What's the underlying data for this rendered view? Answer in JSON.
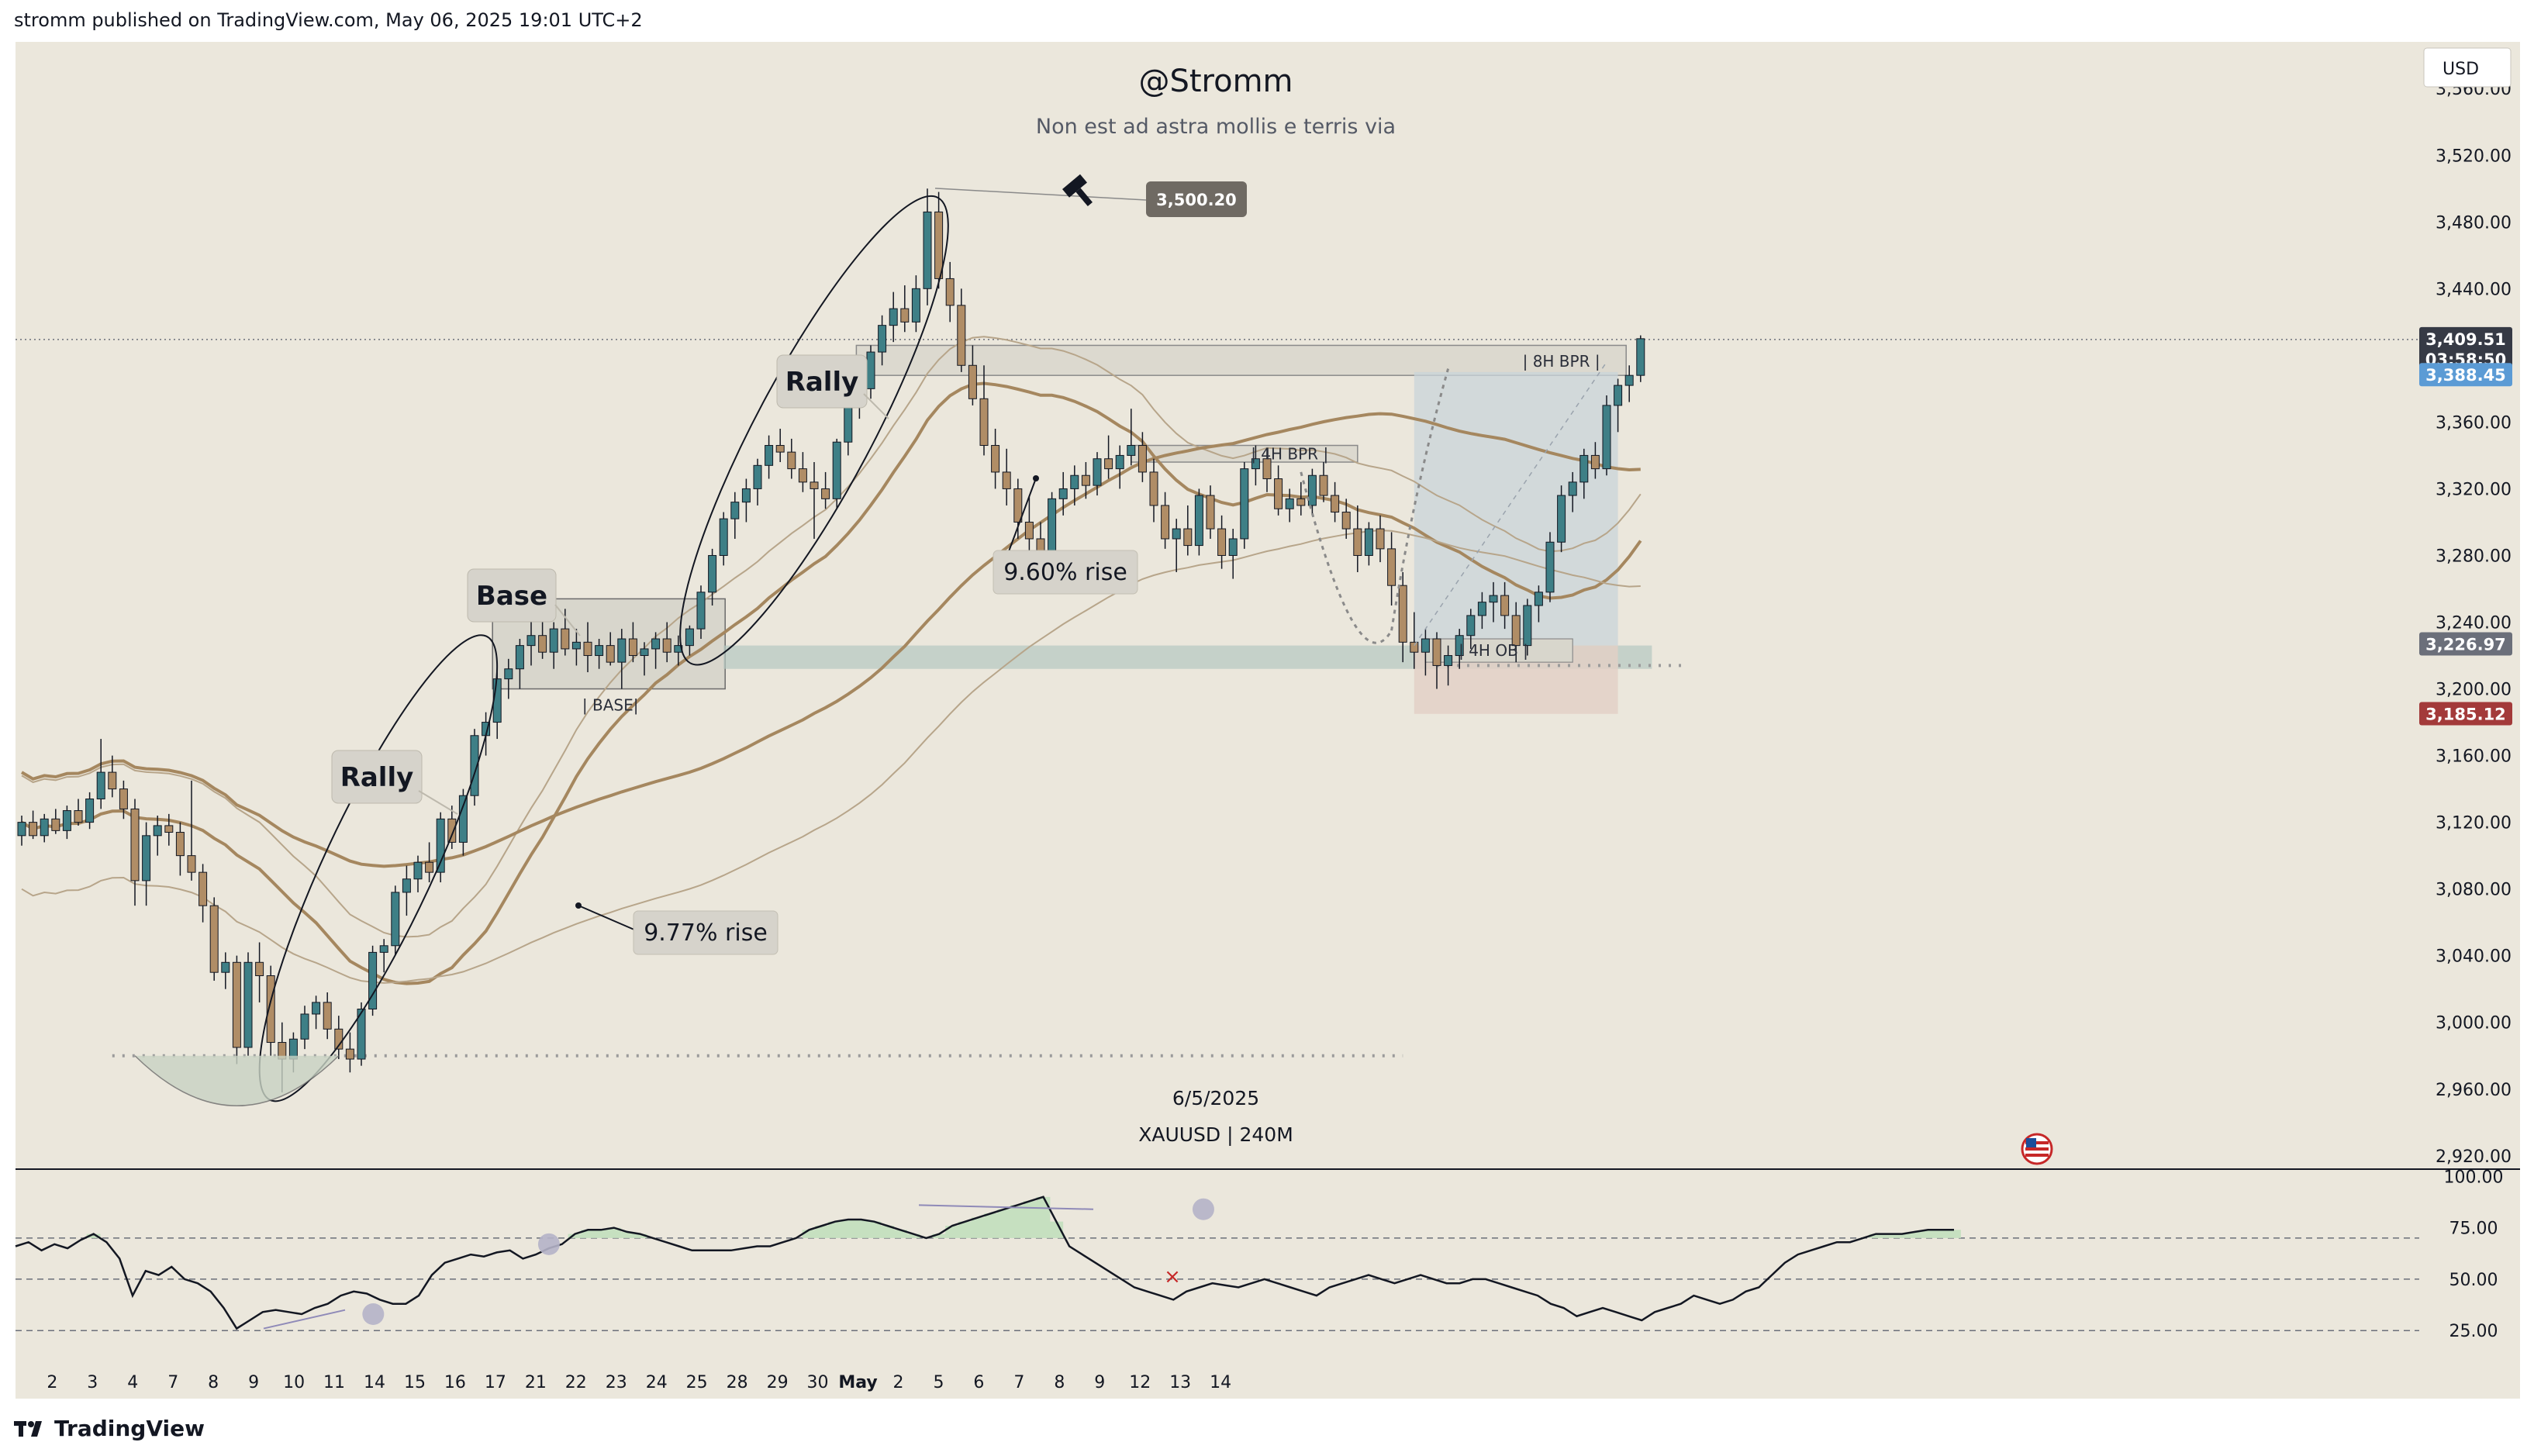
{
  "header": {
    "text": "stromm published on TradingView.com, May 06, 2025 19:01 UTC+2"
  },
  "footer": {
    "brand": "TradingView",
    "logo_icon": "tradingview-logo-icon"
  },
  "chart_data": {
    "type": "candlestick",
    "title": "@Stromm",
    "subtitle": "Non est ad astra mollis e terris via",
    "currency": "USD",
    "symbol_info": "XAUUSD | 240M",
    "date_label": "6/5/2025",
    "ylim": [
      2912,
      3588
    ],
    "y_ticks": [
      2920,
      2960,
      3000,
      3040,
      3080,
      3120,
      3160,
      3200,
      3240,
      3280,
      3320,
      3360,
      3400,
      3440,
      3480,
      3520,
      3560
    ],
    "y_tick_labels": [
      "2,920.00",
      "2,960.00",
      "3,000.00",
      "3,040.00",
      "3,080.00",
      "3,120.00",
      "3,160.00",
      "3,200.00",
      "3,240.00",
      "3,280.00",
      "3,320.00",
      "3,360.00",
      "3,400.00",
      "3,440.00",
      "3,480.00",
      "3,520.00",
      "3,560.00"
    ],
    "x_labels": [
      "2",
      "3",
      "4",
      "7",
      "8",
      "9",
      "10",
      "11",
      "14",
      "15",
      "16",
      "17",
      "21",
      "22",
      "23",
      "24",
      "25",
      "28",
      "29",
      "30",
      "May",
      "2",
      "5",
      "6",
      "7",
      "8",
      "9",
      "12",
      "13",
      "14"
    ],
    "x_label_bar_index": [
      2,
      8,
      14,
      20,
      26,
      32,
      38,
      44,
      50,
      56,
      62,
      68,
      74,
      80,
      86,
      92,
      98,
      104,
      110,
      116,
      122,
      128,
      134,
      140,
      146,
      152,
      158,
      164,
      170,
      176
    ],
    "price_tags": [
      {
        "value": 3409.51,
        "label": "3,409.51",
        "sub": "03:58:50",
        "color": "#363a45"
      },
      {
        "value": 3388.45,
        "label": "3,388.45",
        "color": "#5b9bd5"
      },
      {
        "value": 3226.97,
        "label": "3,226.97",
        "color": "#6b6f7a"
      },
      {
        "value": 3185.12,
        "label": "3,185.12",
        "color": "#a33a3a"
      }
    ],
    "high_marker": {
      "label": "3,500.20",
      "value": 3500.2,
      "icon": "hammer-icon"
    },
    "candles": [
      [
        3112,
        3124,
        3106,
        3120
      ],
      [
        3120,
        3127,
        3110,
        3112
      ],
      [
        3112,
        3125,
        3108,
        3122
      ],
      [
        3122,
        3128,
        3113,
        3115
      ],
      [
        3115,
        3130,
        3110,
        3127
      ],
      [
        3127,
        3134,
        3118,
        3120
      ],
      [
        3120,
        3138,
        3116,
        3134
      ],
      [
        3134,
        3170,
        3128,
        3150
      ],
      [
        3150,
        3160,
        3135,
        3140
      ],
      [
        3140,
        3145,
        3122,
        3128
      ],
      [
        3128,
        3134,
        3070,
        3085
      ],
      [
        3085,
        3120,
        3070,
        3112
      ],
      [
        3112,
        3124,
        3100,
        3118
      ],
      [
        3118,
        3125,
        3106,
        3114
      ],
      [
        3114,
        3120,
        3088,
        3100
      ],
      [
        3100,
        3145,
        3085,
        3090
      ],
      [
        3090,
        3095,
        3060,
        3070
      ],
      [
        3070,
        3075,
        3025,
        3030
      ],
      [
        3030,
        3042,
        3020,
        3036
      ],
      [
        3036,
        3040,
        2975,
        2985
      ],
      [
        2985,
        3042,
        2980,
        3036
      ],
      [
        3036,
        3048,
        3012,
        3028
      ],
      [
        3028,
        3034,
        2980,
        2988
      ],
      [
        2988,
        3000,
        2958,
        2978
      ],
      [
        2978,
        2994,
        2970,
        2990
      ],
      [
        2990,
        3010,
        2984,
        3005
      ],
      [
        3005,
        3016,
        2996,
        3012
      ],
      [
        3012,
        3018,
        2990,
        2996
      ],
      [
        2996,
        3004,
        2978,
        2984
      ],
      [
        2984,
        2994,
        2970,
        2978
      ],
      [
        2978,
        3012,
        2974,
        3008
      ],
      [
        3008,
        3046,
        3004,
        3042
      ],
      [
        3042,
        3050,
        3030,
        3046
      ],
      [
        3046,
        3082,
        3040,
        3078
      ],
      [
        3078,
        3094,
        3064,
        3086
      ],
      [
        3086,
        3100,
        3078,
        3096
      ],
      [
        3096,
        3108,
        3084,
        3090
      ],
      [
        3090,
        3126,
        3084,
        3122
      ],
      [
        3122,
        3130,
        3104,
        3108
      ],
      [
        3108,
        3140,
        3100,
        3136
      ],
      [
        3136,
        3176,
        3130,
        3172
      ],
      [
        3172,
        3186,
        3160,
        3180
      ],
      [
        3180,
        3210,
        3170,
        3206
      ],
      [
        3206,
        3218,
        3194,
        3212
      ],
      [
        3212,
        3230,
        3200,
        3226
      ],
      [
        3226,
        3246,
        3214,
        3232
      ],
      [
        3232,
        3242,
        3218,
        3222
      ],
      [
        3222,
        3240,
        3212,
        3236
      ],
      [
        3236,
        3248,
        3220,
        3224
      ],
      [
        3224,
        3236,
        3214,
        3228
      ],
      [
        3228,
        3240,
        3210,
        3220
      ],
      [
        3220,
        3230,
        3212,
        3226
      ],
      [
        3226,
        3234,
        3214,
        3216
      ],
      [
        3216,
        3236,
        3200,
        3230
      ],
      [
        3230,
        3240,
        3216,
        3220
      ],
      [
        3220,
        3228,
        3208,
        3224
      ],
      [
        3224,
        3234,
        3212,
        3230
      ],
      [
        3230,
        3240,
        3216,
        3222
      ],
      [
        3222,
        3232,
        3214,
        3226
      ],
      [
        3226,
        3238,
        3220,
        3236
      ],
      [
        3236,
        3262,
        3230,
        3258
      ],
      [
        3258,
        3284,
        3250,
        3280
      ],
      [
        3280,
        3306,
        3274,
        3302
      ],
      [
        3302,
        3318,
        3290,
        3312
      ],
      [
        3312,
        3326,
        3300,
        3320
      ],
      [
        3320,
        3338,
        3310,
        3334
      ],
      [
        3334,
        3352,
        3326,
        3346
      ],
      [
        3346,
        3356,
        3336,
        3342
      ],
      [
        3342,
        3350,
        3326,
        3332
      ],
      [
        3332,
        3342,
        3318,
        3324
      ],
      [
        3324,
        3336,
        3290,
        3320
      ],
      [
        3320,
        3330,
        3308,
        3314
      ],
      [
        3314,
        3350,
        3308,
        3348
      ],
      [
        3348,
        3378,
        3340,
        3374
      ],
      [
        3374,
        3386,
        3362,
        3380
      ],
      [
        3380,
        3406,
        3374,
        3402
      ],
      [
        3402,
        3424,
        3394,
        3418
      ],
      [
        3418,
        3438,
        3408,
        3428
      ],
      [
        3428,
        3442,
        3414,
        3420
      ],
      [
        3420,
        3448,
        3414,
        3440
      ],
      [
        3440,
        3500,
        3430,
        3486
      ],
      [
        3486,
        3498,
        3440,
        3446
      ],
      [
        3446,
        3456,
        3420,
        3430
      ],
      [
        3430,
        3440,
        3390,
        3394
      ],
      [
        3394,
        3406,
        3370,
        3374
      ],
      [
        3374,
        3394,
        3340,
        3346
      ],
      [
        3346,
        3356,
        3320,
        3330
      ],
      [
        3330,
        3344,
        3310,
        3320
      ],
      [
        3320,
        3326,
        3290,
        3300
      ],
      [
        3300,
        3316,
        3262,
        3290
      ],
      [
        3290,
        3300,
        3268,
        3282
      ],
      [
        3282,
        3318,
        3276,
        3314
      ],
      [
        3314,
        3330,
        3304,
        3320
      ],
      [
        3320,
        3334,
        3310,
        3328
      ],
      [
        3328,
        3336,
        3314,
        3322
      ],
      [
        3322,
        3342,
        3316,
        3338
      ],
      [
        3338,
        3352,
        3326,
        3332
      ],
      [
        3332,
        3346,
        3320,
        3340
      ],
      [
        3340,
        3368,
        3334,
        3346
      ],
      [
        3346,
        3354,
        3324,
        3330
      ],
      [
        3330,
        3338,
        3300,
        3310
      ],
      [
        3310,
        3318,
        3284,
        3290
      ],
      [
        3290,
        3302,
        3270,
        3296
      ],
      [
        3296,
        3310,
        3280,
        3286
      ],
      [
        3286,
        3320,
        3280,
        3316
      ],
      [
        3316,
        3322,
        3290,
        3296
      ],
      [
        3296,
        3304,
        3272,
        3280
      ],
      [
        3280,
        3296,
        3266,
        3290
      ],
      [
        3290,
        3336,
        3284,
        3332
      ],
      [
        3332,
        3346,
        3322,
        3338
      ],
      [
        3338,
        3344,
        3318,
        3326
      ],
      [
        3326,
        3334,
        3304,
        3308
      ],
      [
        3308,
        3320,
        3300,
        3314
      ],
      [
        3314,
        3324,
        3304,
        3310
      ],
      [
        3310,
        3332,
        3304,
        3328
      ],
      [
        3328,
        3336,
        3312,
        3316
      ],
      [
        3316,
        3324,
        3300,
        3306
      ],
      [
        3306,
        3314,
        3290,
        3296
      ],
      [
        3296,
        3310,
        3270,
        3280
      ],
      [
        3280,
        3300,
        3274,
        3296
      ],
      [
        3296,
        3304,
        3276,
        3284
      ],
      [
        3284,
        3294,
        3250,
        3262
      ],
      [
        3262,
        3270,
        3216,
        3228
      ],
      [
        3228,
        3246,
        3212,
        3222
      ],
      [
        3222,
        3236,
        3208,
        3230
      ],
      [
        3230,
        3234,
        3200,
        3214
      ],
      [
        3214,
        3226,
        3202,
        3220
      ],
      [
        3220,
        3236,
        3212,
        3232
      ],
      [
        3232,
        3248,
        3224,
        3244
      ],
      [
        3244,
        3258,
        3236,
        3252
      ],
      [
        3252,
        3264,
        3240,
        3256
      ],
      [
        3256,
        3264,
        3236,
        3244
      ],
      [
        3244,
        3252,
        3216,
        3226
      ],
      [
        3226,
        3254,
        3220,
        3250
      ],
      [
        3250,
        3262,
        3240,
        3258
      ],
      [
        3258,
        3294,
        3252,
        3288
      ],
      [
        3288,
        3322,
        3282,
        3316
      ],
      [
        3316,
        3330,
        3306,
        3324
      ],
      [
        3324,
        3344,
        3314,
        3340
      ],
      [
        3340,
        3348,
        3326,
        3332
      ],
      [
        3332,
        3376,
        3328,
        3370
      ],
      [
        3370,
        3386,
        3354,
        3382
      ],
      [
        3382,
        3394,
        3372,
        3388
      ],
      [
        3388,
        3412,
        3384,
        3410
      ]
    ],
    "rsi": {
      "levels": [
        25,
        50,
        70
      ],
      "y_ticks": [
        25,
        50,
        75,
        100
      ],
      "y_tick_labels": [
        "25.00",
        "50.00",
        "75.00",
        "100.00"
      ],
      "values": [
        66,
        68,
        64,
        67,
        65,
        69,
        72,
        68,
        60,
        42,
        54,
        52,
        56,
        50,
        48,
        44,
        36,
        26,
        30,
        34,
        35,
        34,
        33,
        36,
        38,
        42,
        44,
        43,
        40,
        38,
        38,
        42,
        52,
        58,
        60,
        62,
        61,
        63,
        64,
        60,
        62,
        65,
        67,
        72,
        74,
        74,
        75,
        73,
        72,
        70,
        68,
        66,
        64,
        64,
        64,
        64,
        65,
        66,
        66,
        68,
        70,
        74,
        76,
        78,
        79,
        79,
        78,
        76,
        74,
        72,
        70,
        72,
        76,
        78,
        80,
        82,
        84,
        86,
        88,
        90,
        78,
        66,
        62,
        58,
        54,
        50,
        46,
        44,
        42,
        40,
        44,
        46,
        48,
        47,
        46,
        48,
        50,
        48,
        46,
        44,
        42,
        46,
        48,
        50,
        52,
        50,
        48,
        50,
        52,
        50,
        48,
        48,
        50,
        50,
        48,
        46,
        44,
        42,
        38,
        36,
        32,
        34,
        36,
        34,
        32,
        30,
        34,
        36,
        38,
        42,
        40,
        38,
        40,
        44,
        46,
        52,
        58,
        62,
        64,
        66,
        68,
        68,
        70,
        72,
        72,
        72,
        73,
        74,
        74,
        74
      ]
    },
    "annotations": {
      "callouts": [
        "Rally",
        "Base",
        "Rally"
      ],
      "percent_labels": [
        "9.77% rise",
        "9.60% rise"
      ],
      "zone_labels": [
        "| BASE|",
        "| 8H BPR |",
        "| 4H BPR |",
        "| 4H OB |"
      ]
    }
  }
}
